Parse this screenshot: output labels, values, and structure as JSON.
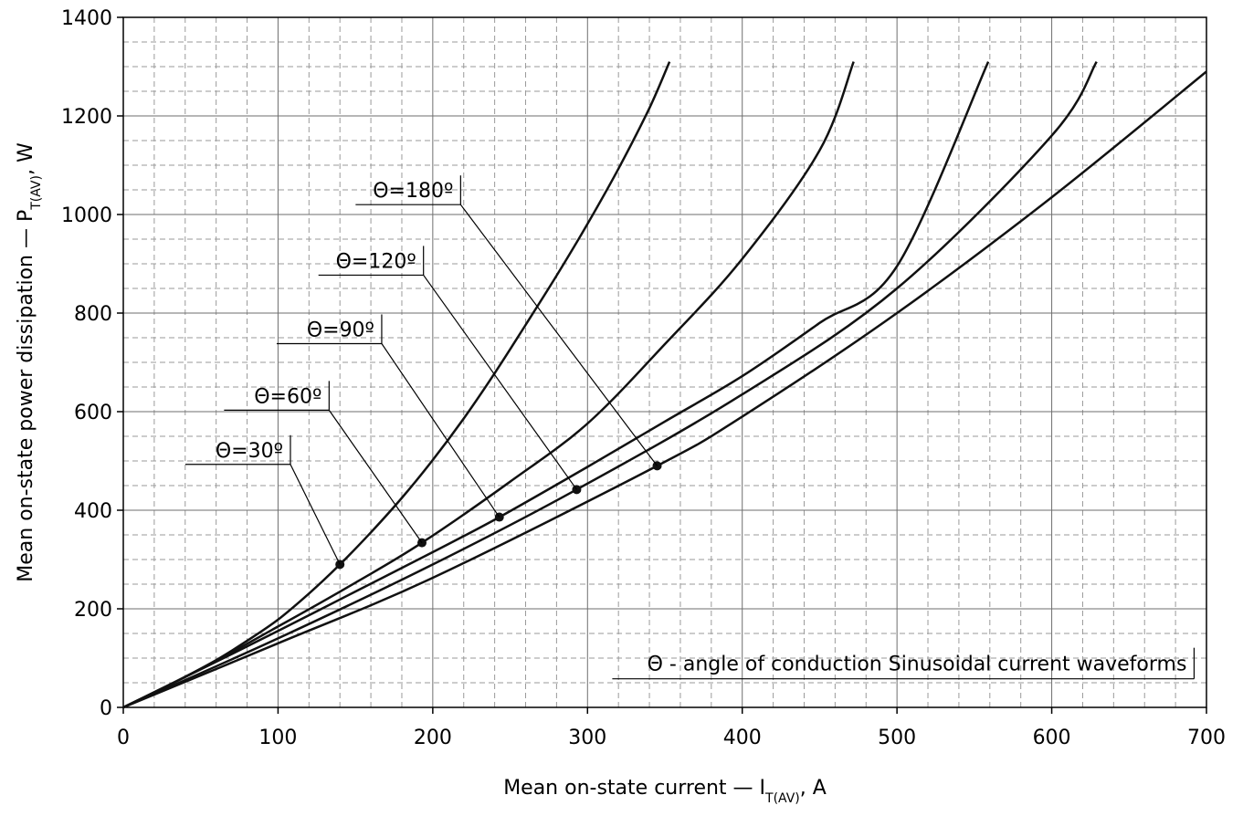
{
  "chart_data": {
    "type": "line",
    "xlabel": {
      "main": "Mean on-state current — I",
      "sub": "T(AV)",
      "suffix": ", A"
    },
    "ylabel": {
      "main": "Mean on-state power dissipation — P",
      "sub": "T(AV)",
      "suffix": ", W"
    },
    "xlim": [
      0,
      700
    ],
    "ylim": [
      0,
      1400
    ],
    "xticks": [
      0,
      100,
      200,
      300,
      400,
      500,
      600,
      700
    ],
    "yticks": [
      0,
      200,
      400,
      600,
      800,
      1000,
      1200,
      1400
    ],
    "grid": {
      "major": true,
      "minor": true,
      "x_minor_step": 20,
      "y_minor_step": 50
    },
    "note": "Θ - angle of conduction Sinusoidal current waveforms",
    "series": [
      {
        "name": "Θ=30º",
        "x": [
          0,
          20,
          40,
          60,
          80,
          100,
          120,
          140,
          160,
          180,
          200,
          220,
          240,
          260,
          280,
          300,
          320,
          340,
          353
        ],
        "y": [
          0,
          30,
          62,
          96,
          135,
          178,
          231,
          290,
          355,
          425,
          502,
          586,
          678,
          776,
          876,
          981,
          1093,
          1216,
          1310
        ],
        "marker": {
          "x": 140,
          "y": 290
        },
        "label_anchor": {
          "x": 108,
          "y": 493
        }
      },
      {
        "name": "Θ=60º",
        "x": [
          0,
          50,
          100,
          150,
          193,
          250,
          300,
          350,
          400,
          450,
          472
        ],
        "y": [
          0,
          78,
          164,
          253,
          334,
          458,
          576,
          737,
          910,
          1130,
          1310
        ],
        "marker": {
          "x": 193,
          "y": 334
        },
        "label_anchor": {
          "x": 133,
          "y": 603
        }
      },
      {
        "name": "Θ=90º",
        "x": [
          0,
          50,
          100,
          150,
          200,
          243,
          300,
          350,
          400,
          450,
          500,
          559
        ],
        "y": [
          0,
          77,
          155,
          235,
          315,
          386,
          488,
          580,
          672,
          780,
          895,
          1310
        ],
        "marker": {
          "x": 243,
          "y": 386
        },
        "label_anchor": {
          "x": 167,
          "y": 738
        }
      },
      {
        "name": "Θ=120º",
        "x": [
          0,
          100,
          200,
          293,
          400,
          500,
          600,
          629
        ],
        "y": [
          0,
          140,
          290,
          442,
          635,
          850,
          1160,
          1310
        ],
        "marker": {
          "x": 293,
          "y": 442
        },
        "label_anchor": {
          "x": 194,
          "y": 877
        }
      },
      {
        "name": "Θ=180º",
        "x": [
          0,
          100,
          200,
          345,
          400,
          500,
          600,
          700
        ],
        "y": [
          0,
          130,
          263,
          490,
          590,
          800,
          1035,
          1290
        ],
        "marker": {
          "x": 345,
          "y": 490
        },
        "label_anchor": {
          "x": 218,
          "y": 1020
        }
      }
    ]
  }
}
